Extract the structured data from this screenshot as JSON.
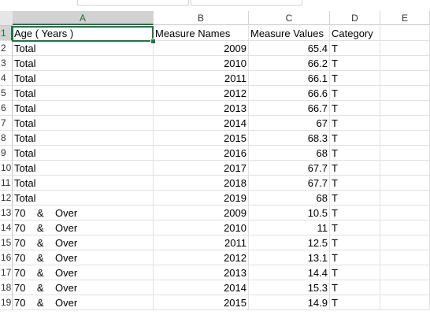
{
  "columns": [
    "A",
    "B",
    "C",
    "D",
    "E"
  ],
  "rows": [
    {
      "n": "1",
      "a": "Age ( Years )",
      "b": "Measure Names",
      "c": "Measure Values",
      "d": "Category"
    },
    {
      "n": "2",
      "a": "Total",
      "b": "2009",
      "c": "65.4",
      "d": "T"
    },
    {
      "n": "3",
      "a": "Total",
      "b": "2010",
      "c": "66.2",
      "d": "T"
    },
    {
      "n": "4",
      "a": "Total",
      "b": "2011",
      "c": "66.1",
      "d": "T"
    },
    {
      "n": "5",
      "a": "Total",
      "b": "2012",
      "c": "66.6",
      "d": "T"
    },
    {
      "n": "6",
      "a": "Total",
      "b": "2013",
      "c": "66.7",
      "d": "T"
    },
    {
      "n": "7",
      "a": "Total",
      "b": "2014",
      "c": "67",
      "d": "T"
    },
    {
      "n": "8",
      "a": "Total",
      "b": "2015",
      "c": "68.3",
      "d": "T"
    },
    {
      "n": "9",
      "a": "Total",
      "b": "2016",
      "c": "68",
      "d": "T"
    },
    {
      "n": "10",
      "a": "Total",
      "b": "2017",
      "c": "67.7",
      "d": "T"
    },
    {
      "n": "11",
      "a": "Total",
      "b": "2018",
      "c": "67.7",
      "d": "T"
    },
    {
      "n": "12",
      "a": "Total",
      "b": "2019",
      "c": "68",
      "d": "T"
    },
    {
      "n": "13",
      "a": "70    &    Over",
      "b": "2009",
      "c": "10.5",
      "d": "T"
    },
    {
      "n": "14",
      "a": "70    &    Over",
      "b": "2010",
      "c": "11",
      "d": "T"
    },
    {
      "n": "15",
      "a": "70    &    Over",
      "b": "2011",
      "c": "12.5",
      "d": "T"
    },
    {
      "n": "16",
      "a": "70    &    Over",
      "b": "2012",
      "c": "13.1",
      "d": "T"
    },
    {
      "n": "17",
      "a": "70    &    Over",
      "b": "2013",
      "c": "14.4",
      "d": "T"
    },
    {
      "n": "18",
      "a": "70    &    Over",
      "b": "2014",
      "c": "15.3",
      "d": "T"
    },
    {
      "n": "19",
      "a": "70    &    Over",
      "b": "2015",
      "c": "14.9",
      "d": "T"
    }
  ],
  "selected_cell": "A1",
  "accent_color": "#217346"
}
